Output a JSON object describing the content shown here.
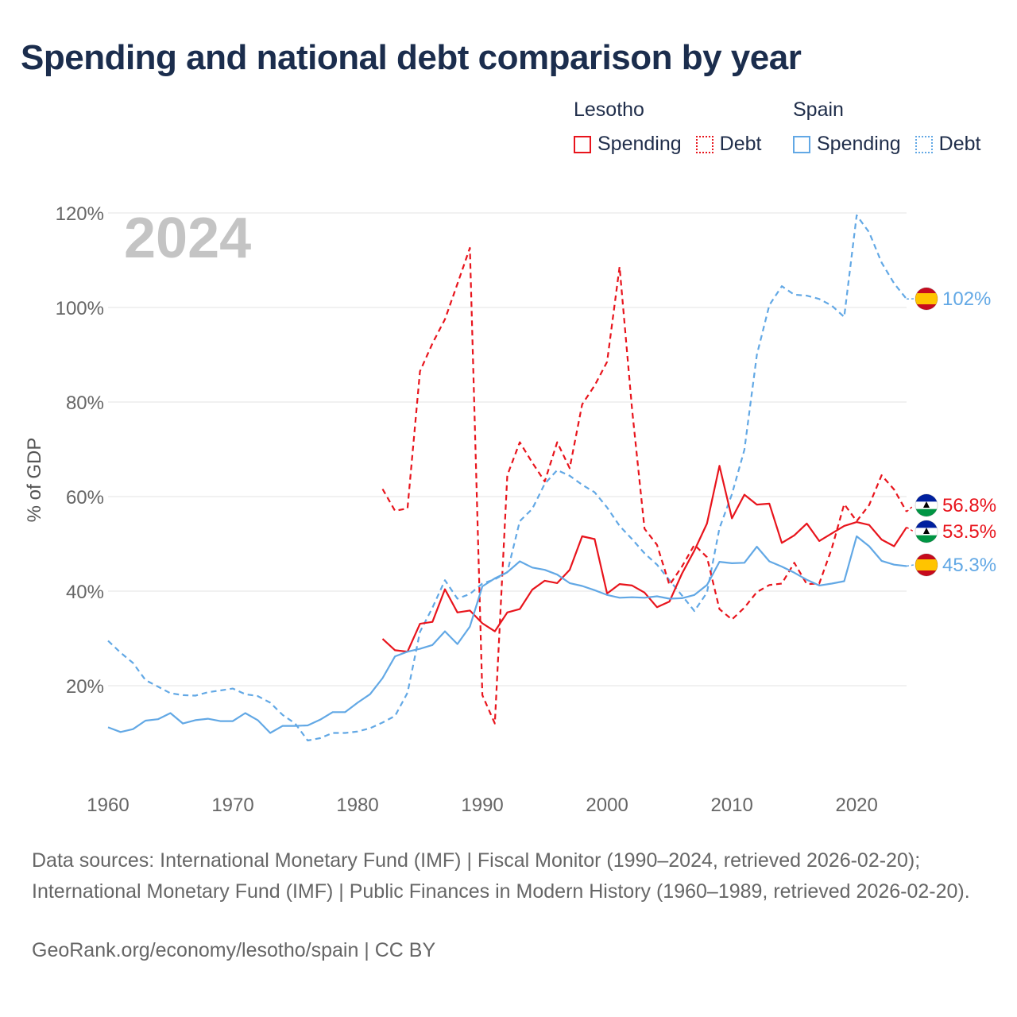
{
  "title": "Spending and national debt comparison by year",
  "legend": {
    "groups": [
      {
        "country": "Lesotho",
        "items": [
          {
            "label": "Spending",
            "color": "#e8141c",
            "style": "solid"
          },
          {
            "label": "Debt",
            "color": "#e8141c",
            "style": "dotted"
          }
        ]
      },
      {
        "country": "Spain",
        "items": [
          {
            "label": "Spending",
            "color": "#62a8e5",
            "style": "solid"
          },
          {
            "label": "Debt",
            "color": "#62a8e5",
            "style": "dotted"
          }
        ]
      }
    ]
  },
  "chart_data": {
    "type": "line",
    "year_label": "2024",
    "ylabel": "% of GDP",
    "xlim": [
      1960,
      2024
    ],
    "ylim": [
      0,
      120
    ],
    "x_ticks": [
      1960,
      1970,
      1980,
      1990,
      2000,
      2010,
      2020
    ],
    "x_tick_labels": [
      "1960",
      "1970",
      "1980",
      "1990",
      "2000",
      "2010",
      "2020"
    ],
    "y_ticks": [
      20,
      40,
      60,
      80,
      100,
      120
    ],
    "y_tick_labels": [
      "20%",
      "40%",
      "60%",
      "80%",
      "100%",
      "120%"
    ],
    "series": [
      {
        "name": "Spain Debt",
        "country": "Spain",
        "color": "#62a8e5",
        "dashed": true,
        "x": [
          1960,
          1961,
          1962,
          1963,
          1964,
          1965,
          1966,
          1967,
          1968,
          1969,
          1970,
          1971,
          1972,
          1973,
          1974,
          1975,
          1976,
          1977,
          1978,
          1979,
          1980,
          1981,
          1982,
          1983,
          1984,
          1985,
          1986,
          1987,
          1988,
          1989,
          1990,
          1991,
          1992,
          1993,
          1994,
          1995,
          1996,
          1997,
          1998,
          1999,
          2000,
          2001,
          2002,
          2003,
          2004,
          2005,
          2006,
          2007,
          2008,
          2009,
          2010,
          2011,
          2012,
          2013,
          2014,
          2015,
          2016,
          2017,
          2018,
          2019,
          2020,
          2021,
          2022,
          2023,
          2024
        ],
        "values": [
          29.5,
          27,
          24.8,
          21.2,
          19.8,
          18.4,
          18,
          17.9,
          18.6,
          19,
          19.4,
          18.2,
          17.8,
          16.4,
          13.8,
          12,
          8.4,
          8.9,
          10,
          10,
          10.3,
          11,
          12.2,
          13.6,
          18.5,
          31.4,
          36.5,
          42.3,
          38.4,
          39.4,
          41.6,
          42.5,
          44,
          54.8,
          57.4,
          62.7,
          65.6,
          64.4,
          62.5,
          60.9,
          57.7,
          53.8,
          51,
          48,
          45.6,
          42.3,
          39.1,
          35.8,
          39.7,
          53.3,
          60.5,
          69.9,
          90,
          100.5,
          104.5,
          102.7,
          102.5,
          101.8,
          100.4,
          98,
          119.5,
          115.9,
          109.5,
          105.1,
          101.8
        ],
        "end_label": "102%"
      },
      {
        "name": "Lesotho Debt",
        "country": "Lesotho",
        "color": "#e8141c",
        "dashed": true,
        "x": [
          1982,
          1983,
          1984,
          1985,
          1986,
          1987,
          1988,
          1989,
          1990,
          1991,
          1992,
          1993,
          1994,
          1995,
          1996,
          1997,
          1998,
          1999,
          2000,
          2001,
          2002,
          2003,
          2004,
          2005,
          2006,
          2007,
          2008,
          2009,
          2010,
          2011,
          2012,
          2013,
          2014,
          2015,
          2016,
          2017,
          2018,
          2019,
          2020,
          2021,
          2022,
          2023,
          2024
        ],
        "values": [
          61.6,
          57,
          57.5,
          86.5,
          92.4,
          97.5,
          105,
          112.6,
          18,
          12,
          64.5,
          71.5,
          67.2,
          63.2,
          71.5,
          66,
          79.5,
          83.5,
          88.5,
          108.6,
          78.5,
          53.2,
          49.8,
          41.3,
          45.2,
          49.8,
          47.2,
          36.2,
          34,
          36.5,
          39.8,
          41.3,
          41.6,
          46,
          41.5,
          41.6,
          49,
          58.4,
          54.8,
          58.2,
          64.5,
          61.5,
          56.8
        ],
        "end_label": "56.8%"
      },
      {
        "name": "Lesotho Spending",
        "country": "Lesotho",
        "color": "#e8141c",
        "dashed": false,
        "x": [
          1982,
          1983,
          1984,
          1985,
          1986,
          1987,
          1988,
          1989,
          1990,
          1991,
          1992,
          1993,
          1994,
          1995,
          1996,
          1997,
          1998,
          1999,
          2000,
          2001,
          2002,
          2003,
          2004,
          2005,
          2006,
          2007,
          2008,
          2009,
          2010,
          2011,
          2012,
          2013,
          2014,
          2015,
          2016,
          2017,
          2018,
          2019,
          2020,
          2021,
          2022,
          2023,
          2024
        ],
        "values": [
          29.9,
          27.5,
          27.2,
          33.1,
          33.5,
          40.4,
          35.5,
          35.9,
          33.2,
          31.5,
          35.5,
          36.2,
          40.3,
          42.2,
          41.7,
          44.5,
          51.6,
          51,
          39.5,
          41.5,
          41.2,
          39.7,
          36.6,
          37.8,
          43.7,
          48.6,
          54.3,
          66.5,
          55.4,
          60.4,
          58.3,
          58.5,
          50.2,
          51.8,
          54.3,
          50.6,
          52.2,
          53.8,
          54.6,
          54,
          50.9,
          49.5,
          53.5
        ],
        "end_label": "53.5%"
      },
      {
        "name": "Spain Spending",
        "country": "Spain",
        "color": "#62a8e5",
        "dashed": false,
        "x": [
          1960,
          1961,
          1962,
          1963,
          1964,
          1965,
          1966,
          1967,
          1968,
          1969,
          1970,
          1971,
          1972,
          1973,
          1974,
          1975,
          1976,
          1977,
          1978,
          1979,
          1980,
          1981,
          1982,
          1983,
          1984,
          1985,
          1986,
          1987,
          1988,
          1989,
          1990,
          1991,
          1992,
          1993,
          1994,
          1995,
          1996,
          1997,
          1998,
          1999,
          2000,
          2001,
          2002,
          2003,
          2004,
          2005,
          2006,
          2007,
          2008,
          2009,
          2010,
          2011,
          2012,
          2013,
          2014,
          2015,
          2016,
          2017,
          2018,
          2019,
          2020,
          2021,
          2022,
          2023,
          2024
        ],
        "values": [
          11.2,
          10.2,
          10.8,
          12.6,
          12.9,
          14.2,
          12,
          12.7,
          13,
          12.5,
          12.5,
          14.2,
          12.7,
          10,
          11.5,
          11.5,
          11.6,
          12.8,
          14.4,
          14.4,
          16.4,
          18.2,
          21.6,
          26.2,
          27.2,
          27.8,
          28.6,
          31.5,
          28.8,
          32.5,
          41,
          42.7,
          44,
          46.3,
          45,
          44.5,
          43.5,
          41.7,
          41.1,
          40.2,
          39.2,
          38.6,
          38.7,
          38.6,
          38.9,
          38.4,
          38.5,
          39.2,
          41.3,
          46.2,
          45.9,
          46,
          49.4,
          46.3,
          45.2,
          43.9,
          42.4,
          41.2,
          41.6,
          42.1,
          51.6,
          49.5,
          46.4,
          45.6,
          45.3
        ],
        "end_label": "45.3%"
      }
    ]
  },
  "sources": {
    "text": "Data sources: International Monetary Fund (IMF) | Fiscal Monitor (1990–2024, retrieved 2026-02-20); International Monetary Fund (IMF) | Public Finances in Modern History (1960–1989, retrieved 2026-02-20).",
    "url_text": "GeoRank.org/economy/lesotho/spain | CC BY"
  }
}
